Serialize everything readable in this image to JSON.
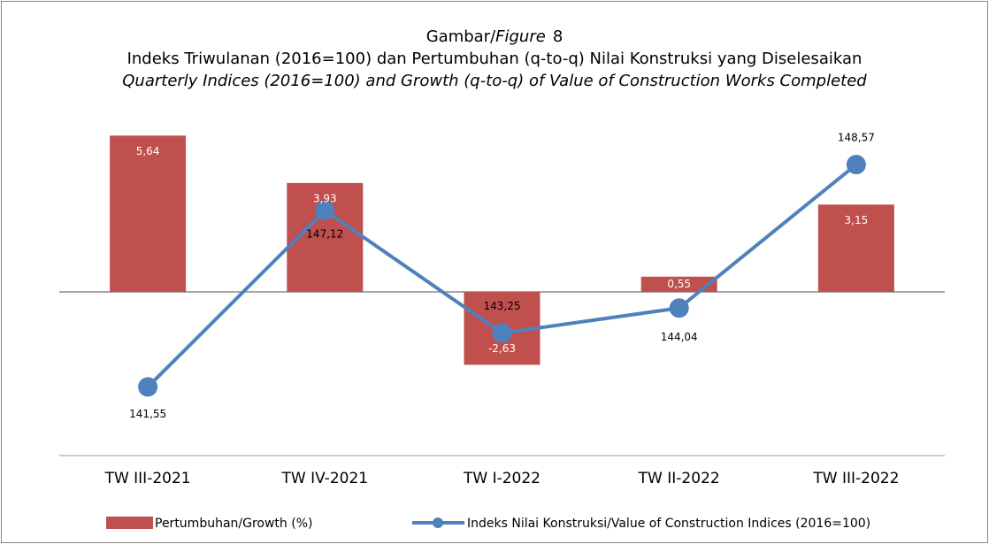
{
  "chart_data": {
    "type": "bar_line",
    "title": [
      "Gambar/",
      "Figure",
      "8"
    ],
    "subtitle": "Indeks Triwulanan (2016=100) dan Pertumbuhan (q-to-q) Nilai Konstruksi yang Diselesaikan",
    "subtitle_en": "Quarterly Indices (2016=100) and Growth (q-to-q) of Value of Construction Works Completed",
    "categories": [
      "TW III-2021",
      "TW IV-2021",
      "TW I-2022",
      "TW II-2022",
      "TW III-2022"
    ],
    "series": [
      {
        "name": "Pertumbuhan/Growth (%)",
        "type": "bar",
        "color": "#c0504d",
        "values": [
          5.64,
          3.93,
          -2.63,
          0.55,
          3.15
        ],
        "value_labels": [
          "5,64",
          "3,93",
          "-2,63",
          "0,55",
          "3,15"
        ]
      },
      {
        "name": "Indeks Nilai Konstruksi/Value of Construction Indices (2016=100)",
        "type": "line",
        "axis": "y2",
        "color": "#4f81bd",
        "values": [
          141.55,
          147.12,
          143.25,
          144.04,
          148.57
        ],
        "value_labels": [
          "141,55",
          "147,12",
          "143,25",
          "144,04",
          "148,57"
        ]
      }
    ],
    "ylim": [
      -6,
      6
    ],
    "y2lim": [
      139.3,
      149.8
    ],
    "legend": "bottom"
  }
}
